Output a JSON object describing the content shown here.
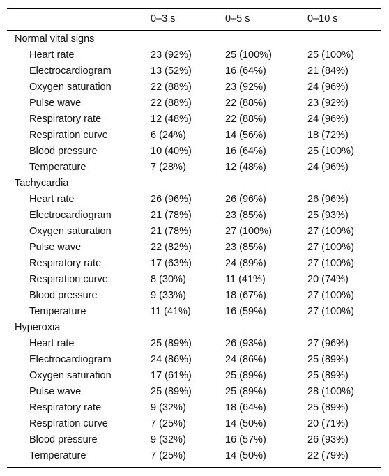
{
  "table": {
    "header": [
      "0–3 s",
      "0–5 s",
      "0–10 s"
    ],
    "groups": [
      {
        "title": "Normal vital signs",
        "rows": [
          {
            "label": "Heart rate",
            "cells": [
              "23 (92%)",
              "25 (100%)",
              "25 (100%)"
            ]
          },
          {
            "label": "Electrocardiogram",
            "cells": [
              "13 (52%)",
              "16 (64%)",
              "21 (84%)"
            ]
          },
          {
            "label": "Oxygen saturation",
            "cells": [
              "22 (88%)",
              "23 (92%)",
              "24 (96%)"
            ]
          },
          {
            "label": "Pulse wave",
            "cells": [
              "22 (88%)",
              "22 (88%)",
              "23 (92%)"
            ]
          },
          {
            "label": "Respiratory rate",
            "cells": [
              "12 (48%)",
              "22 (88%)",
              "24 (96%)"
            ]
          },
          {
            "label": "Respiration curve",
            "cells": [
              "6 (24%)",
              "14 (56%)",
              "18 (72%)"
            ]
          },
          {
            "label": "Blood pressure",
            "cells": [
              "10 (40%)",
              "16 (64%)",
              "25 (100%)"
            ]
          },
          {
            "label": "Temperature",
            "cells": [
              "7 (28%)",
              "12 (48%)",
              "24 (96%)"
            ]
          }
        ]
      },
      {
        "title": "Tachycardia",
        "rows": [
          {
            "label": "Heart rate",
            "cells": [
              "26 (96%)",
              "26 (96%)",
              "26 (96%)"
            ]
          },
          {
            "label": "Electrocardiogram",
            "cells": [
              "21 (78%)",
              "23 (85%)",
              "25 (93%)"
            ]
          },
          {
            "label": "Oxygen saturation",
            "cells": [
              "21 (78%)",
              "27 (100%)",
              "27 (100%)"
            ]
          },
          {
            "label": "Pulse wave",
            "cells": [
              "22 (82%)",
              "23 (85%)",
              "27 (100%)"
            ]
          },
          {
            "label": "Respiratory rate",
            "cells": [
              "17 (63%)",
              "24 (89%)",
              "27 (100%)"
            ]
          },
          {
            "label": "Respiration curve",
            "cells": [
              "8 (30%)",
              "11 (41%)",
              "20 (74%)"
            ]
          },
          {
            "label": "Blood pressure",
            "cells": [
              "9 (33%)",
              "18 (67%)",
              "27 (100%)"
            ]
          },
          {
            "label": "Temperature",
            "cells": [
              "11 (41%)",
              "16 (59%)",
              "27 (100%)"
            ]
          }
        ]
      },
      {
        "title": "Hyperoxia",
        "rows": [
          {
            "label": "Heart rate",
            "cells": [
              "25 (89%)",
              "26 (93%)",
              "27 (96%)"
            ]
          },
          {
            "label": "Electrocardiogram",
            "cells": [
              "24 (86%)",
              "24 (86%)",
              "25 (89%)"
            ]
          },
          {
            "label": "Oxygen saturation",
            "cells": [
              "17 (61%)",
              "25 (89%)",
              "25 (89%)"
            ]
          },
          {
            "label": "Pulse wave",
            "cells": [
              "25 (89%)",
              "25 (89%)",
              "28 (100%)"
            ]
          },
          {
            "label": "Respiratory rate",
            "cells": [
              "9 (32%)",
              "18 (64%)",
              "25 (89%)"
            ]
          },
          {
            "label": "Respiration curve",
            "cells": [
              "7 (25%)",
              "14 (50%)",
              "20 (71%)"
            ]
          },
          {
            "label": "Blood pressure",
            "cells": [
              "9 (32%)",
              "16 (57%)",
              "26 (93%)"
            ]
          },
          {
            "label": "Temperature",
            "cells": [
              "7 (25%)",
              "14 (50%)",
              "22 (79%)"
            ]
          }
        ]
      }
    ]
  }
}
